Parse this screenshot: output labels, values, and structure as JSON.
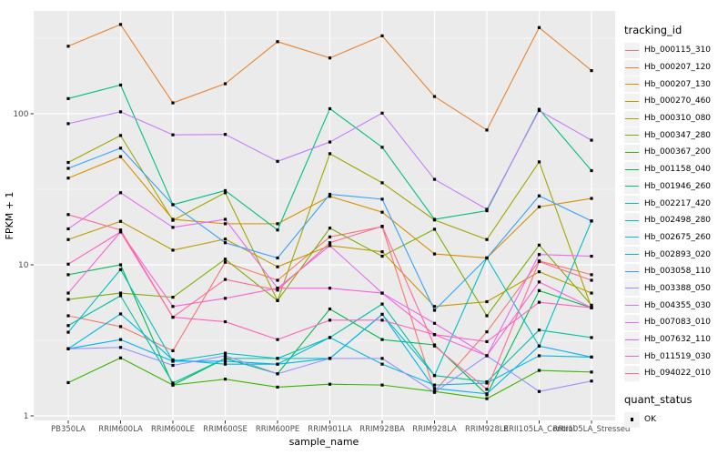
{
  "figure": {
    "panel_background": "#EBEBEB",
    "grid_major_color": "#FFFFFF",
    "grid_minor_color": "#FFFFFF",
    "tick_color": "#333333",
    "tick_label_color": "#4D4D4D",
    "marker_color": "#000000"
  },
  "chart_data": {
    "type": "line",
    "title": "",
    "xlabel": "sample_name",
    "ylabel": "FPKM + 1",
    "y_scale": "log10",
    "y_ticks": [
      1,
      10,
      100
    ],
    "y_minor_ticks": [
      3.1623,
      31.623,
      316.23
    ],
    "ylim": [
      0.92,
      480
    ],
    "grid": true,
    "legend_position": "right",
    "legend_title": "tracking_id",
    "legend2_title": "quant_status",
    "legend2_items": [
      {
        "label": "OK",
        "marker": "black-square"
      }
    ],
    "marker": "black-square",
    "categories": [
      "PB350LA",
      "RRIM600LA",
      "RRIM600LE",
      "RRIM600SE",
      "RRIM600PE",
      "RRIM901LA",
      "RRIM928BA",
      "RRIM928LA",
      "RRIM928LE",
      "RRII105LA_Control",
      "RRII105LA_Stressed"
    ],
    "series": [
      {
        "name": "Hb_000115_310",
        "color": "#F8766D",
        "values": [
          4.6,
          3.9,
          2.7,
          10.4,
          7.9,
          15.3,
          17.9,
          1.45,
          3.6,
          10.6,
          8.6
        ]
      },
      {
        "name": "Hb_000207_120",
        "color": "#EA8331",
        "values": [
          280,
          390,
          118,
          158,
          300,
          234,
          328,
          130,
          78,
          372,
          193
        ]
      },
      {
        "name": "Hb_000207_130",
        "color": "#D89000",
        "values": [
          37.5,
          52,
          20,
          18.7,
          18.7,
          28.4,
          22.3,
          11.8,
          11.1,
          24.2,
          27.5
        ]
      },
      {
        "name": "Hb_000270_460",
        "color": "#C09B00",
        "values": [
          14.7,
          19.4,
          12.5,
          14.8,
          9.7,
          13.4,
          12.2,
          5.3,
          5.7,
          9.0,
          6.5
        ]
      },
      {
        "name": "Hb_000310_080",
        "color": "#A3A500",
        "values": [
          47.6,
          71.8,
          19.7,
          30.0,
          5.8,
          54.4,
          34.9,
          19.8,
          14.7,
          48.0,
          5.2
        ]
      },
      {
        "name": "Hb_000347_280",
        "color": "#7CAE00",
        "values": [
          5.9,
          6.5,
          6.1,
          10.9,
          5.8,
          17.5,
          11.4,
          17.2,
          4.6,
          13.5,
          5.4
        ]
      },
      {
        "name": "Hb_000367_200",
        "color": "#39B600",
        "values": [
          1.66,
          2.42,
          1.6,
          1.75,
          1.55,
          1.62,
          1.6,
          1.45,
          1.3,
          2.0,
          1.95
        ]
      },
      {
        "name": "Hb_001158_040",
        "color": "#00BB4E",
        "values": [
          8.6,
          10.0,
          1.6,
          2.4,
          1.9,
          5.1,
          3.2,
          2.95,
          1.38,
          6.75,
          5.2
        ]
      },
      {
        "name": "Hb_001946_260",
        "color": "#00BF7D",
        "values": [
          126,
          155,
          25,
          31,
          17,
          108,
          60,
          20,
          22.8,
          107,
          42
        ]
      },
      {
        "name": "Hb_002217_420",
        "color": "#00C1A3",
        "values": [
          3.96,
          6.24,
          1.65,
          2.4,
          2.4,
          3.3,
          5.5,
          1.85,
          1.68,
          3.7,
          3.3
        ]
      },
      {
        "name": "Hb_002498_280",
        "color": "#00BFC4",
        "values": [
          3.58,
          9.3,
          2.3,
          2.6,
          2.4,
          2.4,
          4.7,
          1.85,
          11.1,
          2.9,
          19.5
        ]
      },
      {
        "name": "Hb_002675_260",
        "color": "#00BAE0",
        "values": [
          2.78,
          4.73,
          2.35,
          2.2,
          2.2,
          3.3,
          2.2,
          1.6,
          1.65,
          2.5,
          2.45
        ]
      },
      {
        "name": "Hb_002893_020",
        "color": "#00B0F6",
        "values": [
          2.78,
          3.2,
          2.3,
          2.3,
          2.2,
          2.4,
          4.7,
          1.52,
          1.4,
          2.9,
          2.45
        ]
      },
      {
        "name": "Hb_003058_110",
        "color": "#35A2FF",
        "values": [
          43.5,
          59.2,
          25,
          14,
          11.1,
          29.3,
          27.2,
          5.0,
          11.1,
          28.6,
          19.5
        ]
      },
      {
        "name": "Hb_003388_050",
        "color": "#9590FF",
        "values": [
          2.78,
          2.84,
          2.16,
          2.5,
          1.9,
          2.4,
          2.4,
          1.43,
          2.5,
          1.45,
          1.7
        ]
      },
      {
        "name": "Hb_004355_030",
        "color": "#C77CFF",
        "values": [
          86,
          103,
          72.5,
          73,
          48.4,
          65,
          101,
          36.8,
          23.3,
          105,
          66.8
        ]
      },
      {
        "name": "Hb_007083_010",
        "color": "#E76BF3",
        "values": [
          17.3,
          30,
          17.7,
          20,
          7.0,
          13.4,
          6.5,
          4.1,
          2.5,
          11.7,
          11.4
        ]
      },
      {
        "name": "Hb_007632_110",
        "color": "#FA62DB",
        "values": [
          6.5,
          16.5,
          5.3,
          6.0,
          7.0,
          7.0,
          6.5,
          3.45,
          2.5,
          7.7,
          5.2
        ]
      },
      {
        "name": "Hb_011519_030",
        "color": "#FF62BC",
        "values": [
          10.1,
          16.5,
          4.5,
          4.2,
          3.2,
          4.3,
          4.3,
          3.45,
          3.1,
          5.65,
          5.2
        ]
      },
      {
        "name": "Hb_094022_010",
        "color": "#FF6A98",
        "values": [
          21.5,
          17,
          4.5,
          8.0,
          6.8,
          14,
          18,
          2.9,
          1.5,
          10.5,
          7.9
        ]
      }
    ]
  }
}
